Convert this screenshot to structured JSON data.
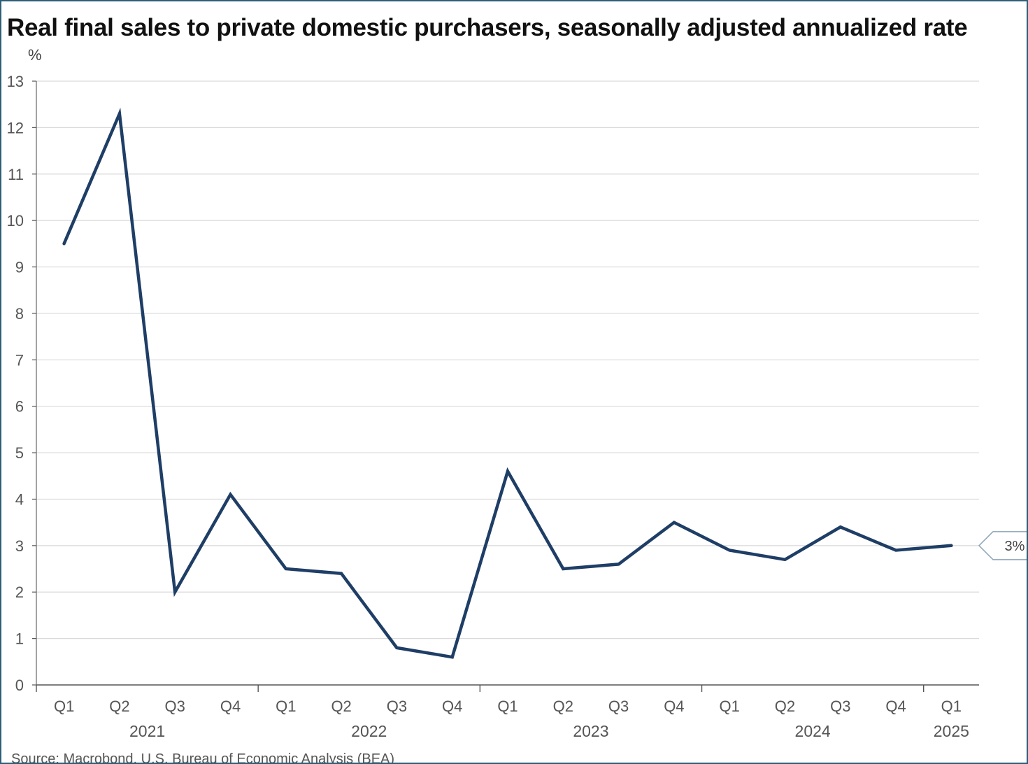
{
  "title": "Real final sales to private domestic purchasers, seasonally adjusted annualized rate",
  "source": "Source: Macrobond, U.S. Bureau of Economic Analysis (BEA)",
  "colors": {
    "line": "#1f3e66",
    "grid": "#d9d9d9",
    "frame": "#2e5f7a"
  },
  "chart_data": {
    "type": "line",
    "ylabel": "%",
    "ylim": [
      0,
      13
    ],
    "yticks": [
      "0",
      "1",
      "2",
      "3",
      "4",
      "5",
      "6",
      "7",
      "8",
      "9",
      "10",
      "11",
      "12",
      "13"
    ],
    "grid": true,
    "categories": [
      "Q1",
      "Q2",
      "Q3",
      "Q4",
      "Q1",
      "Q2",
      "Q3",
      "Q4",
      "Q1",
      "Q2",
      "Q3",
      "Q4",
      "Q1",
      "Q2",
      "Q3",
      "Q4",
      "Q1"
    ],
    "years": [
      {
        "label": "2021",
        "start": 0,
        "end": 3
      },
      {
        "label": "2022",
        "start": 4,
        "end": 7
      },
      {
        "label": "2023",
        "start": 8,
        "end": 11
      },
      {
        "label": "2024",
        "start": 12,
        "end": 15
      },
      {
        "label": "2025",
        "start": 16,
        "end": 16
      }
    ],
    "series": [
      {
        "values": [
          9.5,
          12.3,
          2.0,
          4.1,
          2.5,
          2.4,
          0.8,
          0.6,
          4.6,
          2.5,
          2.6,
          3.5,
          2.9,
          2.7,
          3.4,
          2.9,
          3.0
        ]
      }
    ],
    "last_value_label": "3%"
  }
}
